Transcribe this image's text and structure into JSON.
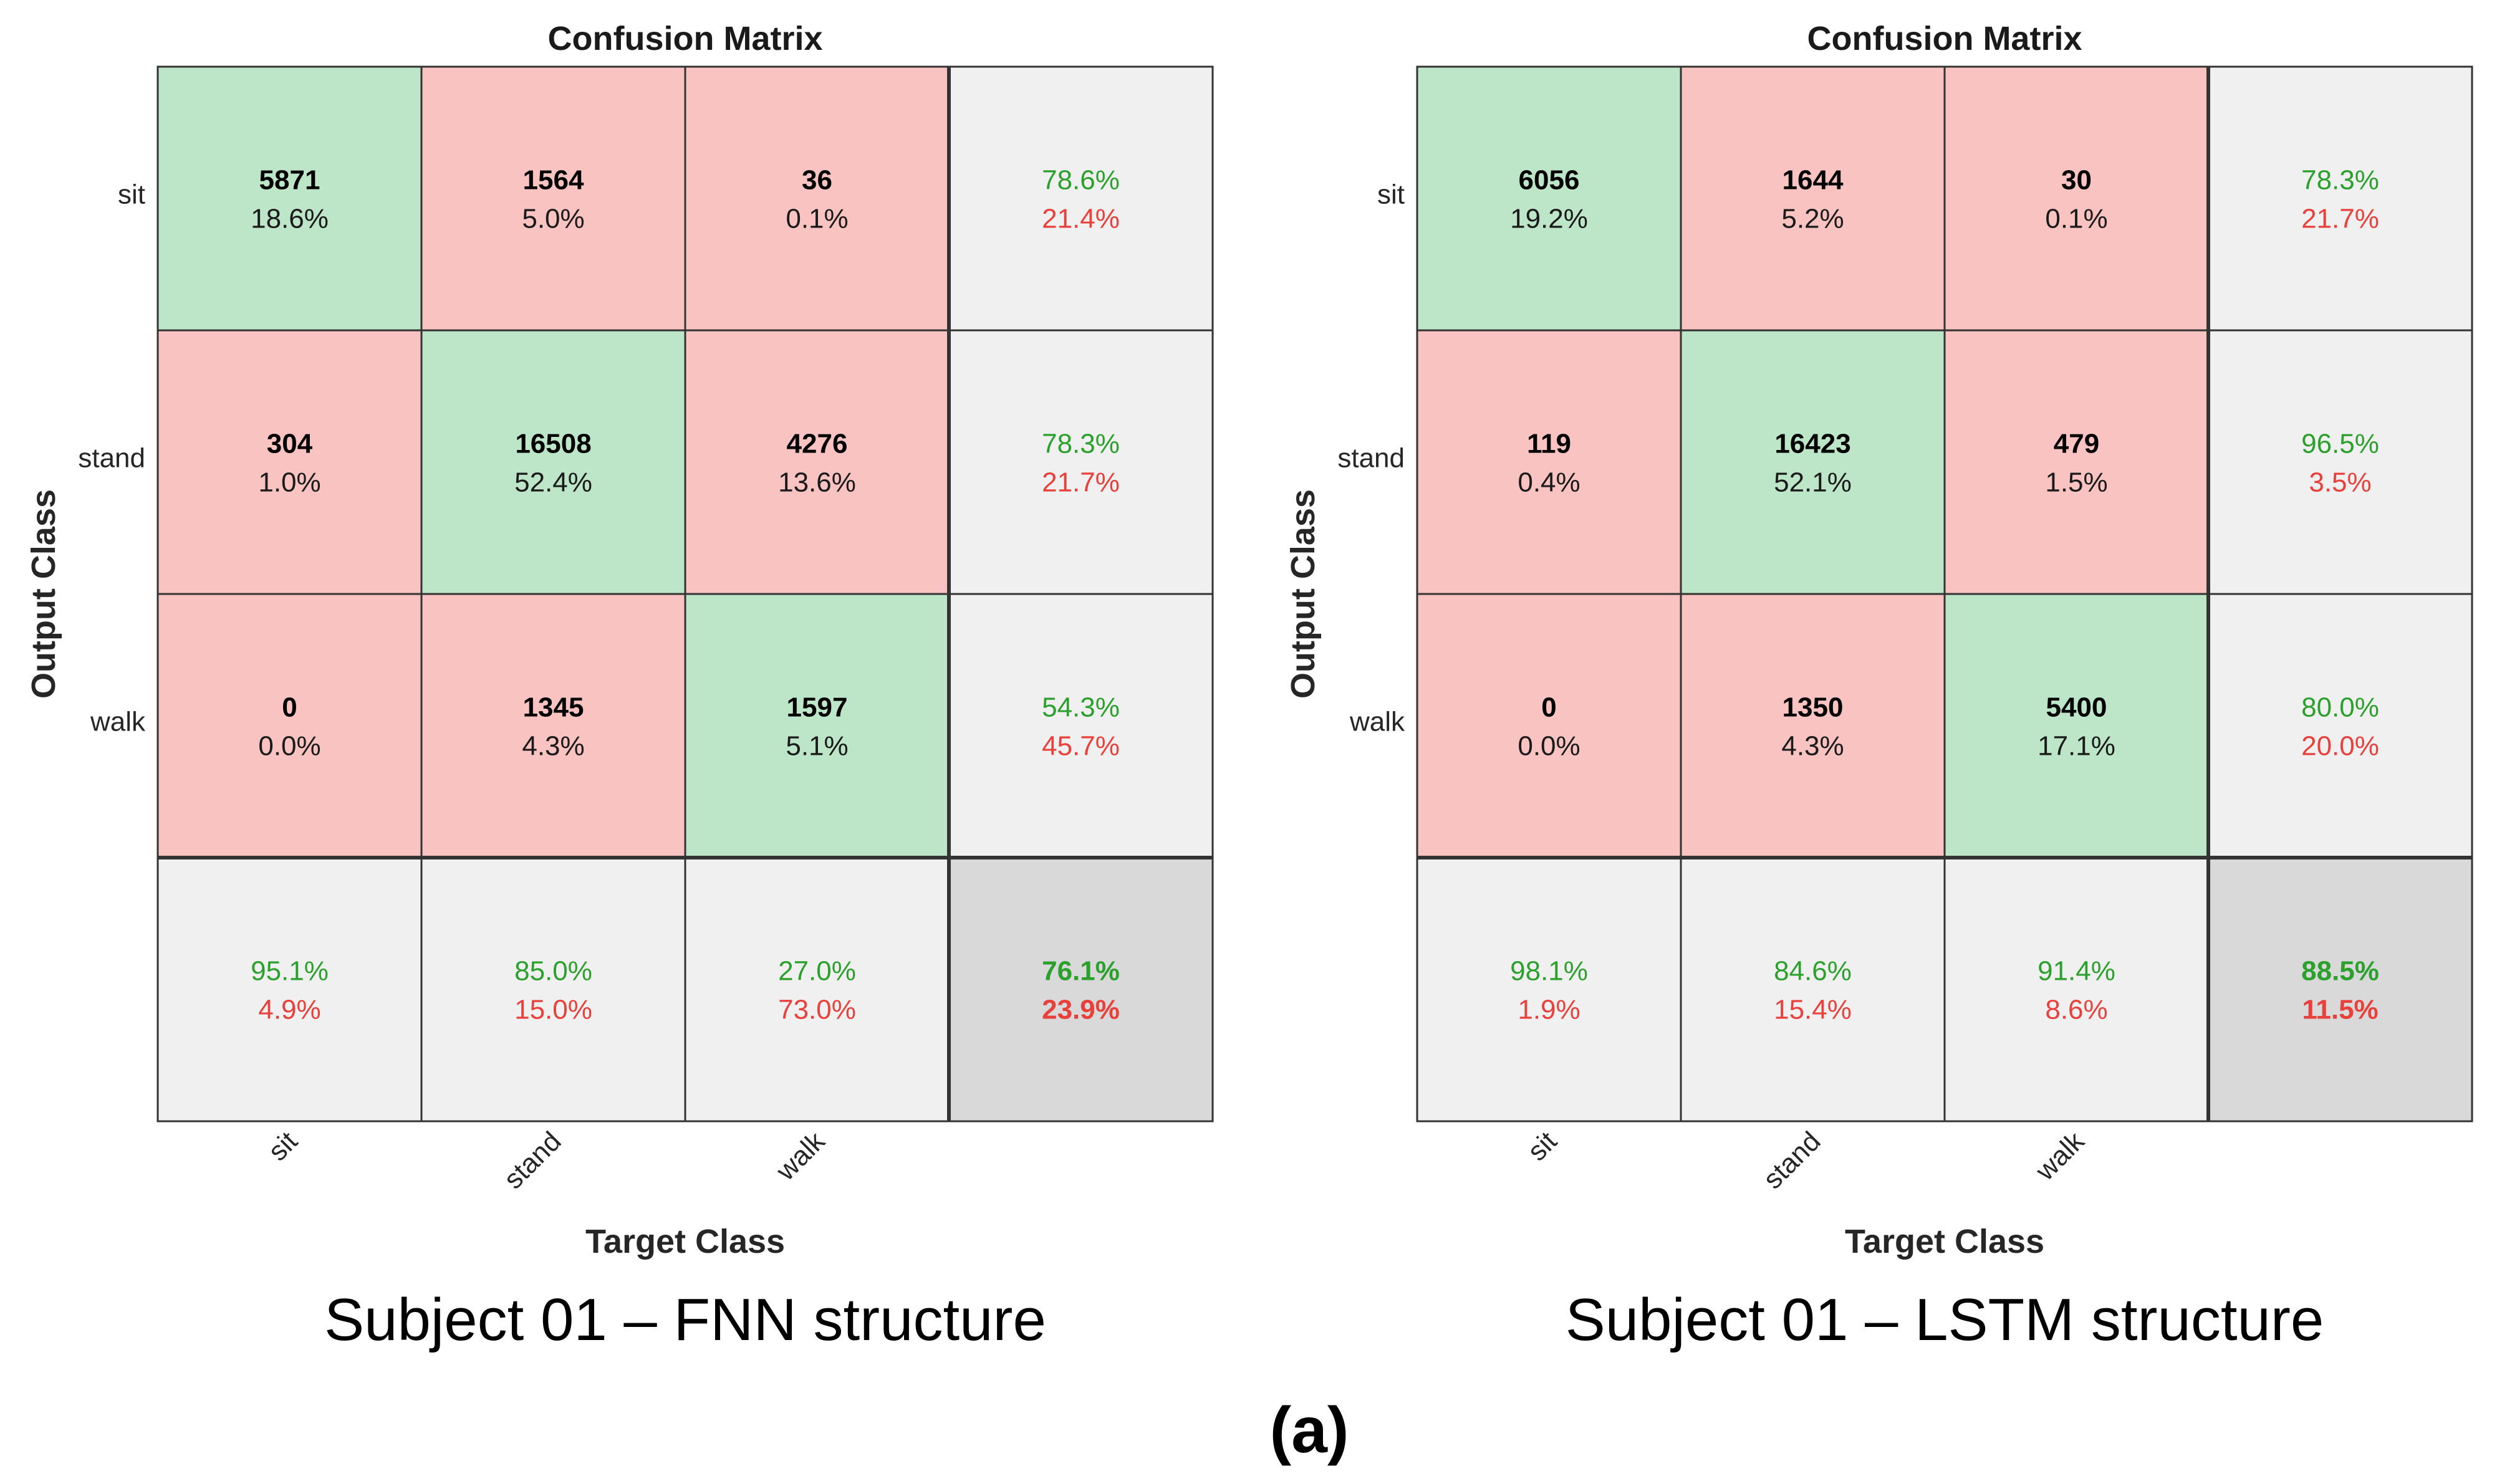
{
  "figure_label": "(a)",
  "chart_data": [
    {
      "type": "heatmap",
      "title": "Confusion Matrix",
      "xlabel": "Target Class",
      "ylabel": "Output Class",
      "classes": [
        "sit",
        "stand",
        "walk"
      ],
      "counts": [
        [
          5871,
          1564,
          36
        ],
        [
          304,
          16508,
          4276
        ],
        [
          0,
          1345,
          1597
        ]
      ],
      "cell_percent": [
        [
          "18.6%",
          "5.0%",
          "0.1%"
        ],
        [
          "1.0%",
          "52.4%",
          "13.6%"
        ],
        [
          "0.0%",
          "4.3%",
          "5.1%"
        ]
      ],
      "row_summary": [
        [
          "78.6%",
          "21.4%"
        ],
        [
          "78.3%",
          "21.7%"
        ],
        [
          "54.3%",
          "45.7%"
        ]
      ],
      "col_summary": [
        [
          "95.1%",
          "4.9%"
        ],
        [
          "85.0%",
          "15.0%"
        ],
        [
          "27.0%",
          "73.0%"
        ]
      ],
      "overall": [
        "76.1%",
        "23.9%"
      ],
      "caption": "Subject 01 – FNN structure",
      "colors": {
        "correct": "#bde5c7",
        "error": "#f8c3c0",
        "summary": "#f0f0f0",
        "overall": "#d9d9d9"
      }
    },
    {
      "type": "heatmap",
      "title": "Confusion Matrix",
      "xlabel": "Target Class",
      "ylabel": "Output Class",
      "classes": [
        "sit",
        "stand",
        "walk"
      ],
      "counts": [
        [
          6056,
          1644,
          30
        ],
        [
          119,
          16423,
          479
        ],
        [
          0,
          1350,
          5400
        ]
      ],
      "cell_percent": [
        [
          "19.2%",
          "5.2%",
          "0.1%"
        ],
        [
          "0.4%",
          "52.1%",
          "1.5%"
        ],
        [
          "0.0%",
          "4.3%",
          "17.1%"
        ]
      ],
      "row_summary": [
        [
          "78.3%",
          "21.7%"
        ],
        [
          "96.5%",
          "3.5%"
        ],
        [
          "80.0%",
          "20.0%"
        ]
      ],
      "col_summary": [
        [
          "98.1%",
          "1.9%"
        ],
        [
          "84.6%",
          "15.4%"
        ],
        [
          "91.4%",
          "8.6%"
        ]
      ],
      "overall": [
        "88.5%",
        "11.5%"
      ],
      "caption": "Subject 01 – LSTM structure",
      "colors": {
        "correct": "#bde5c7",
        "error": "#f8c3c0",
        "summary": "#f0f0f0",
        "overall": "#d9d9d9"
      }
    }
  ]
}
